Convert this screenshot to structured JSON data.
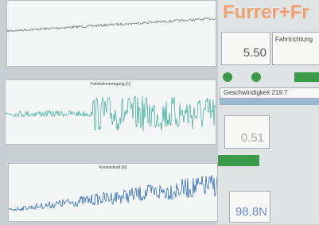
{
  "logo": "Furrer+Fr",
  "plots": {
    "plot_2_title": "Fahrbahnanregung [V]",
    "plot_3_title": "Kontaktkraft [N]"
  },
  "panel": {
    "label_1": "Fahrtrichtung",
    "value_1": "5.50",
    "speed_label": "Geschwindigkeit 219.7",
    "value_2": "0.51",
    "value_3": "98.8N"
  }
}
